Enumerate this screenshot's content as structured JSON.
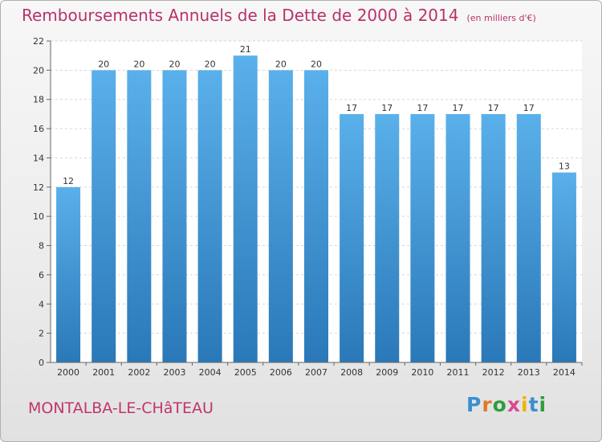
{
  "header": {
    "title": "Remboursements Annuels de la Dette de 2000 à 2014",
    "subtitle": "(en milliers d'€)"
  },
  "footer": {
    "town": "MONTALBA-LE-CHâTEAU",
    "logo_letters": [
      "P",
      "r",
      "o",
      "x",
      "i",
      "t",
      "i"
    ],
    "logo_colors": [
      "#3a8fd0",
      "#e0792a",
      "#2e9e3e",
      "#d84a8c",
      "#f0b400",
      "#3a8fd0",
      "#2e9e3e"
    ]
  },
  "chart_data": {
    "type": "bar",
    "title": "Remboursements Annuels de la Dette de 2000 à 2014",
    "xlabel": "",
    "ylabel": "",
    "categories": [
      "2000",
      "2001",
      "2002",
      "2003",
      "2004",
      "2005",
      "2006",
      "2007",
      "2008",
      "2009",
      "2010",
      "2011",
      "2012",
      "2013",
      "2014"
    ],
    "values": [
      12,
      20,
      20,
      20,
      20,
      21,
      20,
      20,
      17,
      17,
      17,
      17,
      17,
      17,
      13
    ],
    "ylim": [
      0,
      22
    ],
    "yticks": [
      0,
      2,
      4,
      6,
      8,
      10,
      12,
      14,
      16,
      18,
      20,
      22
    ],
    "grid": true,
    "bar_color_top": "#5ab0ea",
    "bar_color_bottom": "#2a78b8"
  }
}
